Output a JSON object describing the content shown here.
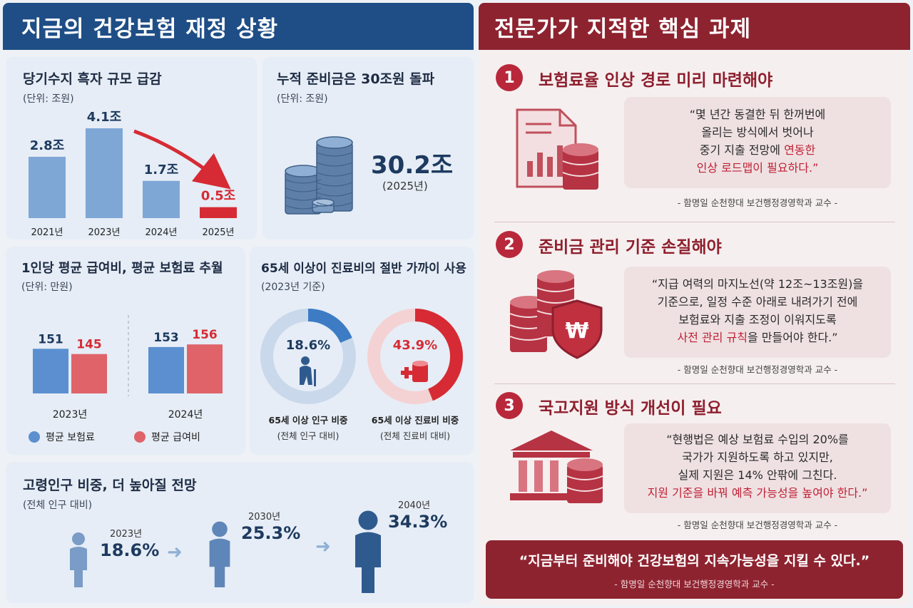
{
  "left_header": "지금의 건강보험 재정 상황",
  "right_header": "전문가가 지적한 핵심 과제",
  "chart_data": [
    {
      "type": "bar",
      "title": "당기수지 흑자 규모 급감",
      "subtitle": "(단위: 조원)",
      "categories": [
        "2021년",
        "2023년",
        "2024년",
        "2025년"
      ],
      "values": [
        2.8,
        4.1,
        1.7,
        0.5
      ],
      "labels": [
        "2.8조",
        "4.1조",
        "1.7조",
        "0.5조"
      ],
      "colors": [
        "#7ea7d6",
        "#7ea7d6",
        "#7ea7d6",
        "#d62b34"
      ]
    },
    {
      "type": "bar",
      "title": "1인당 평균 급여비, 평균 보험료 추월",
      "subtitle": "(단위: 만원)",
      "categories": [
        "2023년",
        "2024년"
      ],
      "series": [
        {
          "name": "평균 보험료",
          "values": [
            151,
            153
          ],
          "color": "#5b8fd0"
        },
        {
          "name": "평균 급여비",
          "values": [
            145,
            156
          ],
          "color": "#e0636a"
        }
      ],
      "labels": {
        "평균 보험료": [
          "151",
          "153"
        ],
        "평균 급여비": [
          "145",
          "156"
        ]
      }
    },
    {
      "type": "pie",
      "title": "65세 이상이 진료비의 절반 가까이 사용",
      "subtitle": "(2023년 기준)",
      "donuts": [
        {
          "value_label": "18.6%",
          "value": 18.6,
          "label": "65세 이상 인구 비중",
          "sub": "(전체 인구 대비)",
          "color": "#3d7cc4",
          "track": "#c9d8ea"
        },
        {
          "value_label": "43.9%",
          "value": 43.9,
          "label": "65세 이상 진료비 비중",
          "sub": "(전체 진료비 대비)",
          "color": "#d62b34",
          "track": "#f4d2d4"
        }
      ]
    }
  ],
  "reserve": {
    "title": "누적 준비금은 30조원 돌파",
    "subtitle": "(단위: 조원)",
    "value": "30.2조",
    "year": "(2025년)"
  },
  "aging": {
    "title": "고령인구 비중, 더 높아질 전망",
    "subtitle": "(전체 인구 대비)",
    "points": [
      {
        "year": "2023년",
        "value": "18.6%"
      },
      {
        "year": "2030년",
        "value": "25.3%"
      },
      {
        "year": "2040년",
        "value": "34.3%"
      }
    ]
  },
  "tasks": [
    {
      "num": "1",
      "title": "보험료율 인상 경로 미리 마련해야",
      "quote": [
        "“몇 년간 동결한 뒤 한꺼번에",
        "올리는 방식에서 벗어나",
        "중기 지출 전망에 ",
        "연동한",
        "인상 로드맵이 필요하다.”"
      ],
      "attr": "- 함명일 순천향대 보건행정경영학과 교수 -"
    },
    {
      "num": "2",
      "title": "준비금 관리 기준 손질해야",
      "quote": [
        "“지급 여력의 마지노선(약 12조~13조원)을",
        "기준으로, 일정 수준 아래로 내려가기 전에",
        "보험료와 지출 조정이 이워지도록",
        "사전 관리 규칙",
        "을 만들어야 한다.”"
      ],
      "attr": "- 함명일 순천향대 보건행정경영학과 교수 -"
    },
    {
      "num": "3",
      "title": "국고지원 방식 개선이 필요",
      "quote": [
        "“현행법은 예상 보험료 수입의 20%를",
        "국가가 지원하도록 하고 있지만,",
        "실제 지원은 14% 안팎에 그친다.",
        "지원 기준을 바꿔 예측 가능성을 높여야 한다.”"
      ],
      "attr": "- 함명일 순천향대 보건행정경영학과 교수 -"
    }
  ],
  "bottom": {
    "quote": "“지금부터 준비해야 건강보험의 지속가능성을 지킬 수 있다.”",
    "attr": "- 함명일 순천향대 보건행정경영학과 교수 -"
  },
  "colors": {
    "blue_header": "#1f4e86",
    "red_header": "#8e2330",
    "accent_red": "#d62b34"
  }
}
